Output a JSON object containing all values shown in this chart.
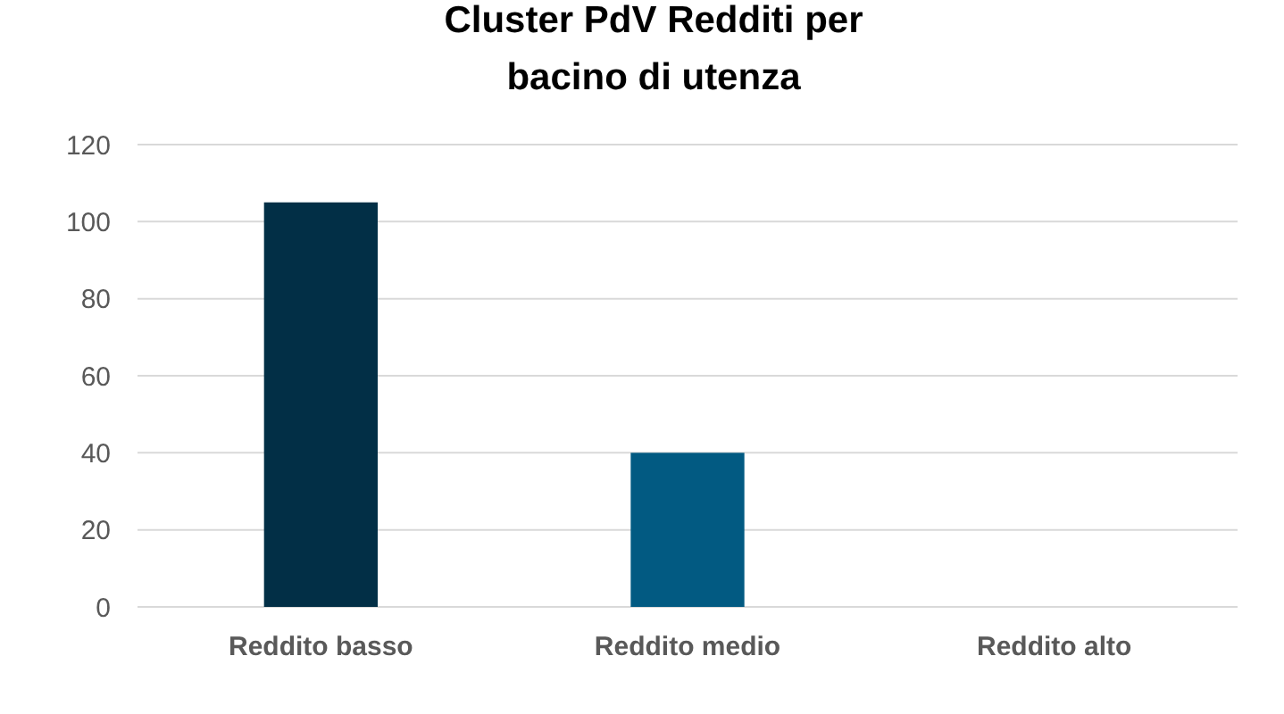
{
  "chart_data": {
    "type": "bar",
    "title": "Cluster PdV Redditi per\nbacino di utenza",
    "categories": [
      "Reddito basso",
      "Reddito medio",
      "Reddito alto"
    ],
    "values": [
      105,
      40,
      0
    ],
    "colors": [
      "#022f46",
      "#025a82",
      "#4f81bd"
    ],
    "ylim": [
      0,
      120
    ],
    "yticks": [
      0,
      20,
      40,
      60,
      80,
      100,
      120
    ],
    "grid": "y"
  }
}
